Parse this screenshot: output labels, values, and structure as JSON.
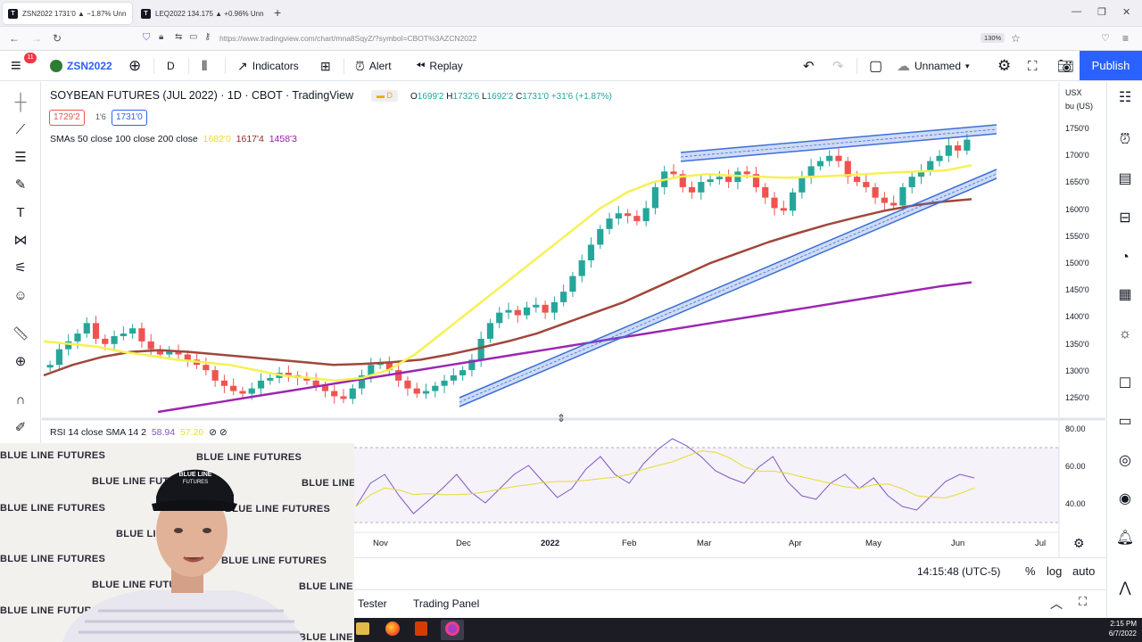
{
  "browser": {
    "tabs": [
      {
        "title": "ZSN2022 1731'0 ▲ −1.87% Unn"
      },
      {
        "title": "LEQ2022 134.175 ▲ +0.96% Unn"
      }
    ],
    "url": "https://www.tradingview.com/chart/mna8SqyZ/?symbol=CBOT%3AZCN2022",
    "zoom": "130%"
  },
  "toolbar": {
    "menu_badge": "11",
    "symbol": "ZSN2022",
    "interval": "D",
    "indicators": "Indicators",
    "alert": "Alert",
    "replay": "Replay",
    "layout_name": "Unnamed",
    "publish": "Publish"
  },
  "legend": {
    "title": "SOYBEAN FUTURES (JUL 2022) · 1D · CBOT · TradingView",
    "ohlc_o": "1699'2",
    "ohlc_h": "1732'6",
    "ohlc_l": "1692'2",
    "ohlc_c": "1731'0",
    "change": "+31'6 (+1.87%)",
    "bid": "1729'2",
    "spread": "1'6",
    "ask": "1731'0",
    "sma_label": "SMAs 50 close 100 close 200 close",
    "sma_v1": "1682'0",
    "sma_v2": "1617'4",
    "sma_v3": "1458'3",
    "rsi_label": "RSI 14 close SMA 14 2",
    "rsi_v1": "58.94",
    "rsi_v2": "57.20"
  },
  "price_axis": {
    "currency": "USX",
    "unit": "bu (US)",
    "ticks": [
      "1750'0",
      "1700'0",
      "1650'0",
      "1600'0",
      "1550'0",
      "1500'0",
      "1450'0",
      "1400'0",
      "1350'0",
      "1300'0",
      "1250'0"
    ]
  },
  "rsi_axis": {
    "ticks": [
      "80.00",
      "60.00",
      "40.00"
    ]
  },
  "date_axis": {
    "ticks": [
      "Nov",
      "Dec",
      "2022",
      "Feb",
      "Mar",
      "Apr",
      "May",
      "Jun",
      "Jul"
    ]
  },
  "status": {
    "time": "14:15:48 (UTC-5)",
    "pct": "%",
    "log": "log",
    "auto": "auto"
  },
  "panel": {
    "tester": "Tester",
    "trading_panel": "Trading Panel"
  },
  "taskbar": {
    "time": "2:15 PM",
    "date": "6/7/2022"
  },
  "webcam": {
    "watermark": "BLUE LINE FUTURES"
  },
  "colors": {
    "accent": "#2962ff",
    "up": "#26a69a",
    "down": "#ef5350",
    "sma50": "#f6f152",
    "sma100": "#a0473a",
    "sma200": "#9c27b0",
    "channel": "#3d6fd8"
  },
  "chart_data": {
    "type": "candlestick",
    "title": "SOYBEAN FUTURES (JUL 2022) · 1D · CBOT",
    "ylim": [
      1210,
      1790
    ],
    "close_series": [
      1300,
      1330,
      1345,
      1360,
      1380,
      1350,
      1340,
      1355,
      1360,
      1370,
      1345,
      1330,
      1320,
      1325,
      1320,
      1310,
      1300,
      1290,
      1270,
      1260,
      1250,
      1245,
      1255,
      1270,
      1275,
      1285,
      1280,
      1275,
      1270,
      1260,
      1250,
      1240,
      1235,
      1255,
      1280,
      1300,
      1305,
      1290,
      1270,
      1255,
      1245,
      1250,
      1260,
      1270,
      1280,
      1290,
      1310,
      1350,
      1380,
      1400,
      1405,
      1395,
      1410,
      1415,
      1400,
      1420,
      1440,
      1470,
      1500,
      1530,
      1560,
      1580,
      1590,
      1585,
      1575,
      1600,
      1640,
      1670,
      1665,
      1640,
      1630,
      1650,
      1655,
      1660,
      1650,
      1670,
      1665,
      1640,
      1620,
      1600,
      1595,
      1630,
      1660,
      1680,
      1690,
      1700,
      1690,
      1660,
      1650,
      1640,
      1620,
      1610,
      1605,
      1640,
      1660,
      1670,
      1690,
      1700,
      1720,
      1710,
      1731
    ],
    "sma50": [
      1345,
      1340,
      1335,
      1325,
      1318,
      1310,
      1305,
      1300,
      1290,
      1280,
      1275,
      1270,
      1275,
      1290,
      1320,
      1360,
      1400,
      1440,
      1480,
      1520,
      1560,
      1600,
      1630,
      1650,
      1660,
      1665,
      1662,
      1660,
      1658,
      1660,
      1662,
      1665,
      1668,
      1670,
      1672,
      1682
    ],
    "sma100": [
      1280,
      1300,
      1315,
      1325,
      1328,
      1325,
      1320,
      1315,
      1310,
      1305,
      1300,
      1302,
      1305,
      1310,
      1320,
      1332,
      1345,
      1360,
      1380,
      1400,
      1420,
      1445,
      1470,
      1495,
      1515,
      1535,
      1552,
      1568,
      1582,
      1595,
      1605,
      1612,
      1617
    ],
    "sma200": [
      1210,
      1220,
      1230,
      1240,
      1250,
      1260,
      1270,
      1280,
      1290,
      1300,
      1310,
      1320,
      1330,
      1340,
      1350,
      1360,
      1370,
      1380,
      1390,
      1400,
      1410,
      1420,
      1430,
      1440,
      1450,
      1458
    ],
    "rsi": [
      42,
      55,
      60,
      48,
      38,
      45,
      52,
      60,
      50,
      44,
      52,
      60,
      65,
      56,
      47,
      52,
      63,
      70,
      60,
      55,
      66,
      74,
      80,
      76,
      70,
      62,
      58,
      55,
      64,
      70,
      56,
      48,
      46,
      55,
      60,
      52,
      58,
      48,
      42,
      40,
      48,
      56,
      60,
      58
    ]
  }
}
